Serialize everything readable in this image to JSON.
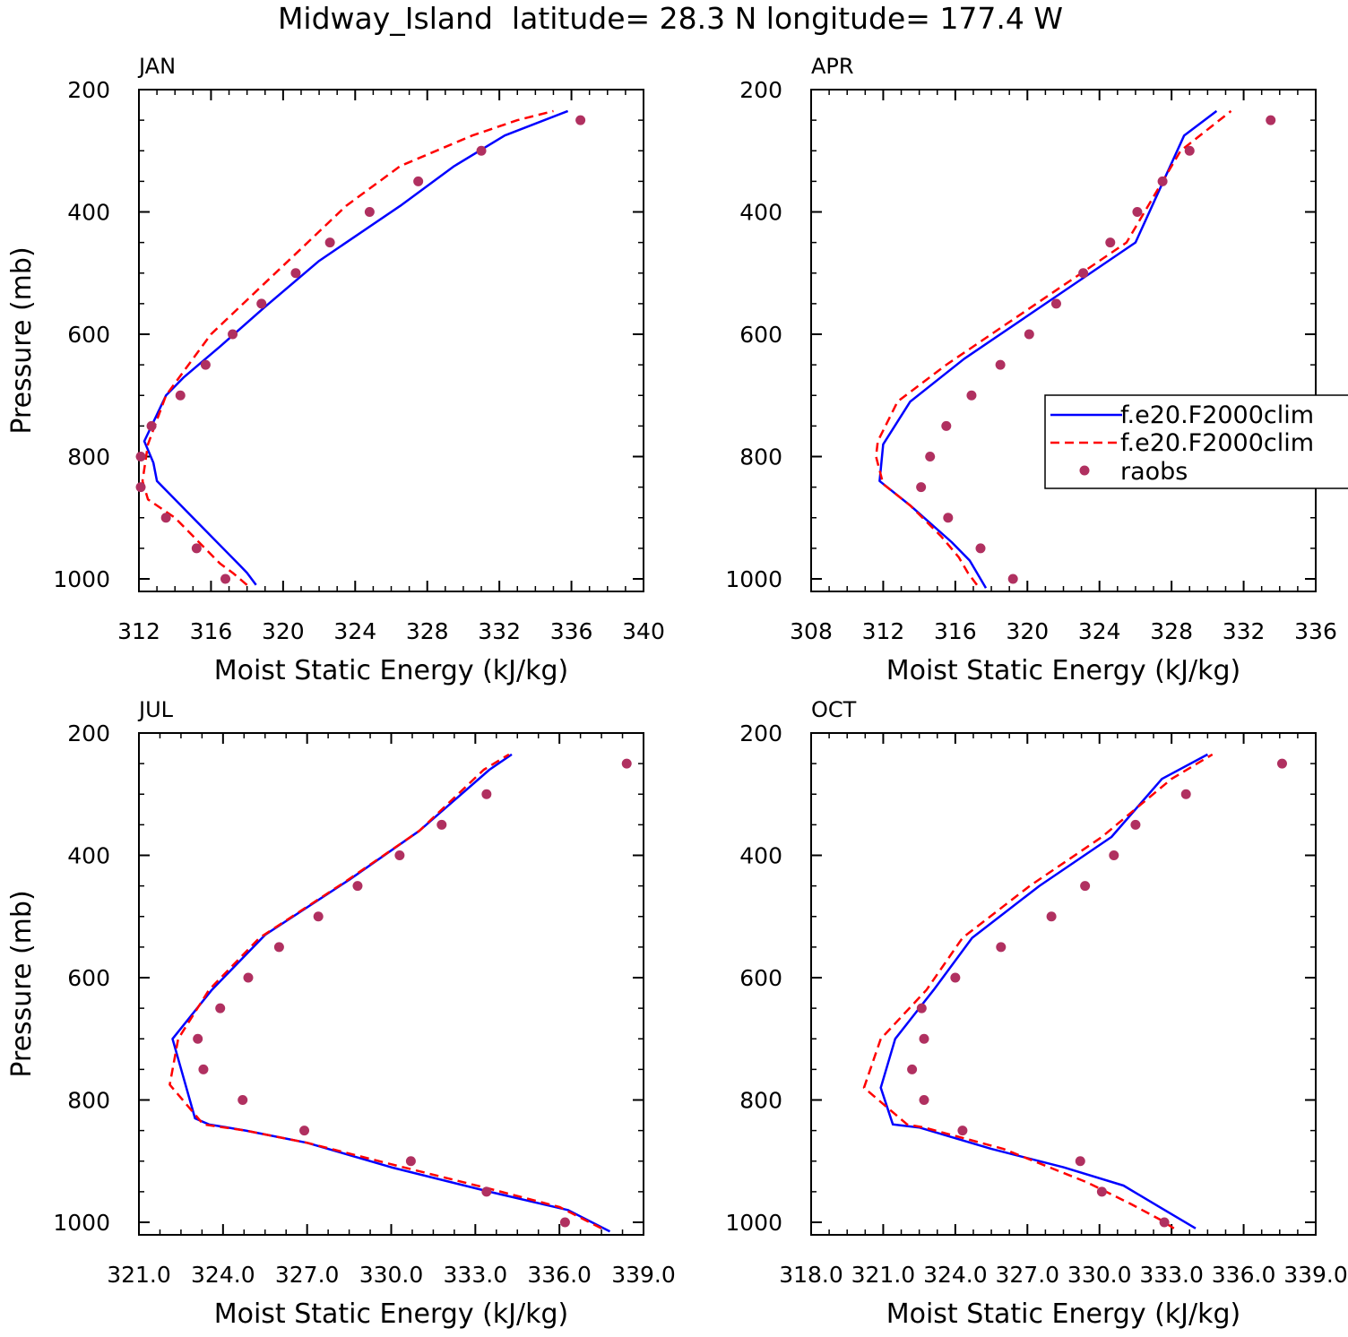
{
  "title": "Midway_Island  latitude= 28.3 N longitude= 177.4 W",
  "legend": {
    "entries": [
      {
        "label": "f.e20.F2000clim",
        "style": "solid",
        "color": "#0000ff"
      },
      {
        "label": "f.e20.F2000clim",
        "style": "dashed",
        "color": "#ff0000"
      },
      {
        "label": "raobs",
        "style": "dots",
        "color": "#b03060"
      }
    ]
  },
  "chart_data": [
    {
      "type": "line",
      "title": "JAN",
      "xlabel": "Moist Static Energy (kJ/kg)",
      "ylabel": "Pressure (mb)",
      "xlim": [
        312,
        340
      ],
      "ylim": [
        1000,
        200
      ],
      "xticks": [
        "312",
        "316",
        "320",
        "324",
        "328",
        "332",
        "336",
        "340"
      ],
      "yticks": [
        "200",
        "400",
        "600",
        "800",
        "1000"
      ],
      "series": [
        {
          "name": "f.e20.F2000clim",
          "style": "solid",
          "color": "#0000ff",
          "x": [
            318.5,
            318,
            317.5,
            315,
            313,
            312.8,
            312.3,
            313.5,
            314.5,
            316.5,
            319,
            322,
            324,
            326.5,
            329.5,
            332.3,
            335.8
          ],
          "y": [
            1010,
            990,
            975,
            900,
            840,
            810,
            775,
            700,
            670,
            620,
            555,
            480,
            440,
            390,
            325,
            275,
            235
          ]
        },
        {
          "name": "f.e20.F2000clim",
          "style": "dashed",
          "color": "#ff0000",
          "x": [
            318,
            317.2,
            316.5,
            314,
            312.5,
            312.2,
            312.5,
            313.5,
            314.5,
            316,
            318.5,
            321,
            323.5,
            326.5,
            330.5,
            333,
            335
          ],
          "y": [
            1010,
            990,
            975,
            900,
            870,
            840,
            780,
            700,
            660,
            600,
            530,
            460,
            390,
            325,
            275,
            250,
            235
          ]
        },
        {
          "name": "raobs",
          "style": "dots",
          "color": "#b03060",
          "x": [
            316.8,
            315.2,
            313.5,
            312.1,
            312.1,
            312.7,
            314.3,
            315.7,
            317.2,
            318.8,
            320.7,
            322.6,
            324.8,
            327.5,
            331.0,
            336.5
          ],
          "y": [
            1000,
            950,
            900,
            850,
            800,
            750,
            700,
            650,
            600,
            550,
            500,
            450,
            400,
            350,
            300,
            250
          ]
        }
      ]
    },
    {
      "type": "line",
      "title": "APR",
      "xlabel": "Moist Static Energy (kJ/kg)",
      "ylabel": "",
      "xlim": [
        308,
        336
      ],
      "ylim": [
        1000,
        200
      ],
      "xticks": [
        "308",
        "312",
        "316",
        "320",
        "324",
        "328",
        "332",
        "336"
      ],
      "yticks": [
        "200",
        "400",
        "600",
        "800",
        "1000"
      ],
      "series": [
        {
          "name": "f.e20.F2000clim",
          "style": "solid",
          "color": "#0000ff",
          "x": [
            317.7,
            317.3,
            316.8,
            315.8,
            313.5,
            311.8,
            312,
            313.5,
            316.5,
            321,
            326,
            328.7,
            330.5
          ],
          "y": [
            1015,
            995,
            970,
            940,
            880,
            840,
            780,
            710,
            640,
            550,
            450,
            275,
            235
          ]
        },
        {
          "name": "f.e20.F2000clim",
          "style": "dashed",
          "color": "#ff0000",
          "x": [
            317.2,
            316.7,
            316.2,
            315.2,
            313.5,
            312,
            311.6,
            311.7,
            312.8,
            315.5,
            320.5,
            325.5,
            328.5,
            331.3
          ],
          "y": [
            1010,
            990,
            965,
            930,
            880,
            845,
            800,
            775,
            710,
            650,
            550,
            450,
            300,
            235
          ]
        },
        {
          "name": "raobs",
          "style": "dots",
          "color": "#b03060",
          "x": [
            319.2,
            317.4,
            315.6,
            314.1,
            314.6,
            315.5,
            316.9,
            318.5,
            320.1,
            321.6,
            323.1,
            324.6,
            326.1,
            327.5,
            329.0,
            333.5
          ],
          "y": [
            1000,
            950,
            900,
            850,
            800,
            750,
            700,
            650,
            600,
            550,
            500,
            450,
            400,
            350,
            300,
            250
          ]
        }
      ]
    },
    {
      "type": "line",
      "title": "JUL",
      "xlabel": "Moist Static Energy (kJ/kg)",
      "ylabel": "Pressure (mb)",
      "xlim": [
        321.0,
        339.0
      ],
      "ylim": [
        1000,
        200
      ],
      "xticks": [
        "321.0",
        "324.0",
        "327.0",
        "330.0",
        "333.0",
        "336.0",
        "339.0"
      ],
      "yticks": [
        "200",
        "400",
        "600",
        "800",
        "1000"
      ],
      "series": [
        {
          "name": "f.e20.F2000clim",
          "style": "solid",
          "color": "#0000ff",
          "x": [
            337.8,
            336.3,
            333.5,
            330,
            327,
            324.8,
            323.5,
            323,
            322.2,
            323.6,
            325.5,
            328.5,
            331,
            333.5,
            334.3
          ],
          "y": [
            1015,
            980,
            950,
            910,
            870,
            850,
            840,
            830,
            700,
            620,
            530,
            440,
            360,
            260,
            235
          ]
        },
        {
          "name": "f.e20.F2000clim",
          "style": "dashed",
          "color": "#ff0000",
          "x": [
            337.5,
            336,
            333.5,
            330,
            327,
            324.8,
            323.3,
            322.1,
            322.4,
            323.5,
            325.3,
            328.3,
            331,
            333.3,
            334.2
          ],
          "y": [
            1010,
            975,
            945,
            905,
            870,
            850,
            840,
            775,
            700,
            620,
            535,
            445,
            360,
            260,
            235
          ]
        },
        {
          "name": "raobs",
          "style": "dots",
          "color": "#b03060",
          "x": [
            336.2,
            333.4,
            330.7,
            326.9,
            324.7,
            323.3,
            323.1,
            323.9,
            324.9,
            326.0,
            327.4,
            328.8,
            330.3,
            331.8,
            333.4,
            338.4
          ],
          "y": [
            1000,
            950,
            900,
            850,
            800,
            750,
            700,
            650,
            600,
            550,
            500,
            450,
            400,
            350,
            300,
            250
          ]
        }
      ]
    },
    {
      "type": "line",
      "title": "OCT",
      "xlabel": "Moist Static Energy (kJ/kg)",
      "ylabel": "",
      "xlim": [
        318.0,
        339.0
      ],
      "ylim": [
        1000,
        200
      ],
      "xticks": [
        "318.0",
        "321.0",
        "324.0",
        "327.0",
        "330.0",
        "333.0",
        "336.0",
        "339.0"
      ],
      "yticks": [
        "200",
        "400",
        "600",
        "800",
        "1000"
      ],
      "series": [
        {
          "name": "f.e20.F2000clim",
          "style": "solid",
          "color": "#0000ff",
          "x": [
            334,
            332.5,
            331,
            328.5,
            325.5,
            322.5,
            321.4,
            320.9,
            321.5,
            323.1,
            324.7,
            327.5,
            330.5,
            332.6,
            334.5
          ],
          "y": [
            1010,
            975,
            940,
            910,
            880,
            845,
            840,
            780,
            700,
            620,
            535,
            450,
            370,
            275,
            235
          ]
        },
        {
          "name": "f.e20.F2000clim",
          "style": "dashed",
          "color": "#ff0000",
          "x": [
            333.1,
            332.5,
            331.3,
            329.5,
            326,
            322.7,
            322,
            320.2,
            320.9,
            322.8,
            324.3,
            327.1,
            330.1,
            333,
            334.7
          ],
          "y": [
            1010,
            995,
            970,
            935,
            880,
            845,
            840,
            780,
            700,
            620,
            535,
            450,
            370,
            275,
            235
          ]
        },
        {
          "name": "raobs",
          "style": "dots",
          "color": "#b03060",
          "x": [
            332.7,
            330.1,
            329.2,
            324.3,
            322.7,
            322.2,
            322.7,
            322.6,
            324.0,
            325.9,
            328.0,
            329.4,
            330.6,
            331.5,
            333.6,
            337.6
          ],
          "y": [
            1000,
            950,
            900,
            850,
            800,
            750,
            700,
            650,
            600,
            550,
            500,
            450,
            400,
            350,
            300,
            250
          ]
        }
      ]
    }
  ]
}
